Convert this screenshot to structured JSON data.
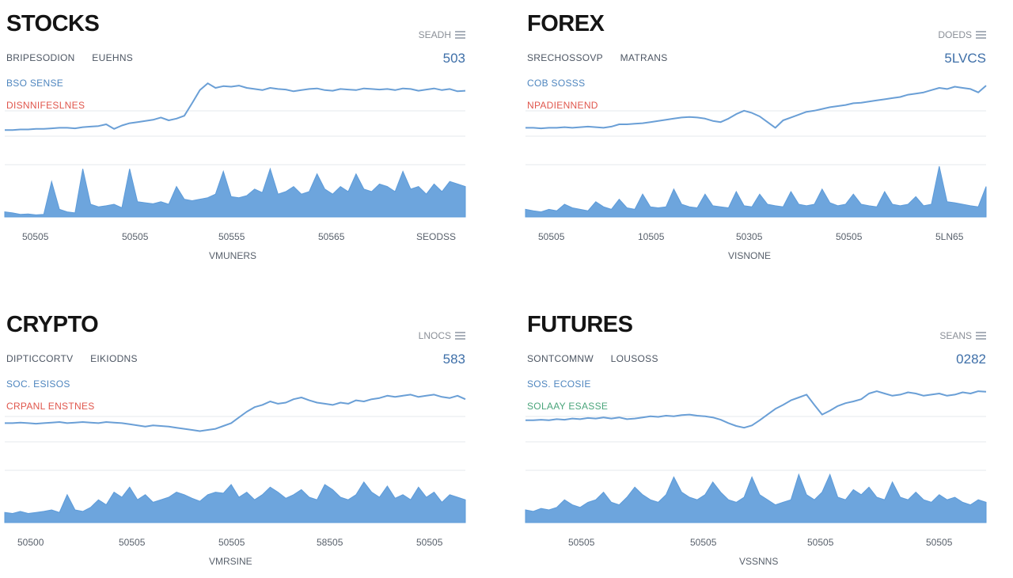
{
  "colors": {
    "line": "#6a9fd6",
    "volume": "#5d9bd9",
    "grid": "#e6e9ee",
    "accent_red": "#e0564c",
    "accent_green": "#4aa57b"
  },
  "panels": [
    {
      "title": "STOCKS",
      "corner": "SEADH",
      "sub_left": "BRIPESODION",
      "sub_right": "EUEHNS",
      "price": "503",
      "legend1": "BSO SENSE",
      "legend2": "DISNNIFESLNES",
      "legend2_color": "red",
      "xticks": [
        "50505",
        "50505",
        "50555",
        "50565",
        "SEODSS"
      ],
      "xlabel": "VMUNERS"
    },
    {
      "title": "FOREX",
      "corner": "DOEDS",
      "sub_left": "SRECHOSSOVP",
      "sub_right": "MATRANS",
      "price": "5LVCS",
      "legend1": "COB SOSSS",
      "legend2": "NPADIENNEND",
      "legend2_color": "red",
      "xticks": [
        "50505",
        "10505",
        "50305",
        "50505",
        "5LN65"
      ],
      "xlabel": "VISNONE"
    },
    {
      "title": "CRYPTO",
      "corner": "LNOCS",
      "sub_left": "DIPTICCORTV",
      "sub_right": "EIKIODNS",
      "price": "583",
      "legend1": "SOC. ESISOS",
      "legend2": "CRPANL ENSTNES",
      "legend2_color": "red",
      "xticks": [
        "50500",
        "50505",
        "50505",
        "58505",
        "50505"
      ],
      "xlabel": "VMRSINE"
    },
    {
      "title": "FUTURES",
      "corner": "SEANS",
      "sub_left": "SONTCOMNW",
      "sub_right": "LOUSOSS",
      "price": "0282",
      "legend1": "SOS. ECOSIE",
      "legend2": "SOLAAY ESASSE",
      "legend2_color": "green",
      "xticks": [
        "50505",
        "50505",
        "50505",
        "50505"
      ],
      "xlabel": "VSSNNS"
    }
  ],
  "chart_data": [
    {
      "type": "line",
      "title": "STOCKS",
      "price_series": [
        0.08,
        0.08,
        0.09,
        0.09,
        0.1,
        0.1,
        0.11,
        0.12,
        0.12,
        0.11,
        0.13,
        0.14,
        0.15,
        0.18,
        0.1,
        0.16,
        0.2,
        0.22,
        0.24,
        0.26,
        0.3,
        0.25,
        0.28,
        0.33,
        0.55,
        0.78,
        0.9,
        0.82,
        0.85,
        0.84,
        0.86,
        0.82,
        0.8,
        0.78,
        0.82,
        0.8,
        0.79,
        0.76,
        0.78,
        0.8,
        0.81,
        0.78,
        0.77,
        0.8,
        0.79,
        0.78,
        0.81,
        0.8,
        0.79,
        0.8,
        0.78,
        0.81,
        0.8,
        0.77,
        0.79,
        0.81,
        0.78,
        0.8,
        0.76,
        0.77
      ],
      "volume_series": [
        0.1,
        0.08,
        0.05,
        0.06,
        0.04,
        0.05,
        0.7,
        0.15,
        0.1,
        0.08,
        0.95,
        0.25,
        0.2,
        0.22,
        0.25,
        0.18,
        0.95,
        0.3,
        0.28,
        0.26,
        0.3,
        0.25,
        0.6,
        0.35,
        0.32,
        0.35,
        0.38,
        0.45,
        0.9,
        0.4,
        0.38,
        0.42,
        0.55,
        0.48,
        0.95,
        0.45,
        0.5,
        0.6,
        0.45,
        0.5,
        0.85,
        0.55,
        0.45,
        0.6,
        0.5,
        0.85,
        0.55,
        0.5,
        0.65,
        0.6,
        0.5,
        0.9,
        0.55,
        0.6,
        0.45,
        0.65,
        0.5,
        0.7,
        0.65,
        0.6
      ]
    },
    {
      "type": "line",
      "title": "FOREX",
      "price_series": [
        0.12,
        0.12,
        0.11,
        0.12,
        0.12,
        0.13,
        0.12,
        0.13,
        0.14,
        0.13,
        0.12,
        0.14,
        0.18,
        0.18,
        0.19,
        0.2,
        0.22,
        0.24,
        0.26,
        0.28,
        0.3,
        0.31,
        0.3,
        0.28,
        0.24,
        0.22,
        0.28,
        0.36,
        0.42,
        0.38,
        0.32,
        0.22,
        0.12,
        0.25,
        0.3,
        0.35,
        0.4,
        0.42,
        0.45,
        0.48,
        0.5,
        0.52,
        0.55,
        0.56,
        0.58,
        0.6,
        0.62,
        0.64,
        0.66,
        0.7,
        0.72,
        0.74,
        0.78,
        0.82,
        0.8,
        0.84,
        0.82,
        0.8,
        0.74,
        0.86
      ],
      "volume_series": [
        0.15,
        0.12,
        0.1,
        0.15,
        0.12,
        0.25,
        0.18,
        0.15,
        0.12,
        0.3,
        0.2,
        0.15,
        0.35,
        0.18,
        0.15,
        0.45,
        0.2,
        0.18,
        0.2,
        0.55,
        0.25,
        0.2,
        0.18,
        0.45,
        0.22,
        0.2,
        0.18,
        0.5,
        0.22,
        0.2,
        0.45,
        0.25,
        0.22,
        0.2,
        0.5,
        0.25,
        0.22,
        0.25,
        0.55,
        0.28,
        0.22,
        0.25,
        0.45,
        0.25,
        0.22,
        0.2,
        0.5,
        0.25,
        0.22,
        0.25,
        0.4,
        0.22,
        0.25,
        1.0,
        0.3,
        0.28,
        0.25,
        0.22,
        0.2,
        0.6
      ]
    },
    {
      "type": "line",
      "title": "CRYPTO",
      "price_series": [
        0.3,
        0.3,
        0.31,
        0.3,
        0.29,
        0.3,
        0.31,
        0.32,
        0.3,
        0.31,
        0.32,
        0.31,
        0.3,
        0.32,
        0.31,
        0.3,
        0.28,
        0.26,
        0.24,
        0.26,
        0.25,
        0.24,
        0.22,
        0.2,
        0.18,
        0.16,
        0.18,
        0.2,
        0.25,
        0.3,
        0.4,
        0.5,
        0.58,
        0.62,
        0.68,
        0.64,
        0.66,
        0.72,
        0.75,
        0.7,
        0.66,
        0.64,
        0.62,
        0.66,
        0.64,
        0.7,
        0.68,
        0.72,
        0.74,
        0.78,
        0.76,
        0.78,
        0.8,
        0.76,
        0.78,
        0.8,
        0.76,
        0.74,
        0.78,
        0.72
      ],
      "volume_series": [
        0.2,
        0.18,
        0.22,
        0.18,
        0.2,
        0.22,
        0.25,
        0.2,
        0.55,
        0.25,
        0.22,
        0.3,
        0.45,
        0.35,
        0.6,
        0.5,
        0.7,
        0.45,
        0.55,
        0.4,
        0.45,
        0.5,
        0.6,
        0.55,
        0.48,
        0.42,
        0.55,
        0.6,
        0.58,
        0.75,
        0.5,
        0.6,
        0.45,
        0.55,
        0.7,
        0.6,
        0.48,
        0.55,
        0.65,
        0.5,
        0.45,
        0.75,
        0.65,
        0.5,
        0.45,
        0.55,
        0.8,
        0.6,
        0.5,
        0.72,
        0.48,
        0.55,
        0.45,
        0.7,
        0.5,
        0.6,
        0.4,
        0.55,
        0.5,
        0.45
      ]
    },
    {
      "type": "line",
      "title": "FUTURES",
      "price_series": [
        0.35,
        0.35,
        0.36,
        0.35,
        0.37,
        0.36,
        0.38,
        0.37,
        0.39,
        0.38,
        0.4,
        0.38,
        0.4,
        0.37,
        0.38,
        0.4,
        0.42,
        0.41,
        0.43,
        0.42,
        0.44,
        0.45,
        0.43,
        0.42,
        0.4,
        0.36,
        0.3,
        0.25,
        0.22,
        0.26,
        0.35,
        0.45,
        0.55,
        0.62,
        0.7,
        0.75,
        0.8,
        0.62,
        0.45,
        0.52,
        0.6,
        0.65,
        0.68,
        0.72,
        0.82,
        0.86,
        0.82,
        0.78,
        0.8,
        0.84,
        0.82,
        0.78,
        0.8,
        0.82,
        0.78,
        0.8,
        0.84,
        0.82,
        0.86,
        0.85
      ],
      "volume_series": [
        0.25,
        0.22,
        0.28,
        0.25,
        0.3,
        0.45,
        0.35,
        0.3,
        0.4,
        0.45,
        0.6,
        0.4,
        0.35,
        0.5,
        0.7,
        0.55,
        0.45,
        0.4,
        0.55,
        0.9,
        0.6,
        0.5,
        0.45,
        0.55,
        0.8,
        0.6,
        0.45,
        0.4,
        0.5,
        0.9,
        0.55,
        0.45,
        0.35,
        0.4,
        0.45,
        0.95,
        0.55,
        0.45,
        0.6,
        0.95,
        0.5,
        0.45,
        0.65,
        0.55,
        0.7,
        0.5,
        0.45,
        0.8,
        0.5,
        0.45,
        0.6,
        0.45,
        0.4,
        0.55,
        0.45,
        0.5,
        0.4,
        0.35,
        0.45,
        0.4
      ]
    }
  ]
}
